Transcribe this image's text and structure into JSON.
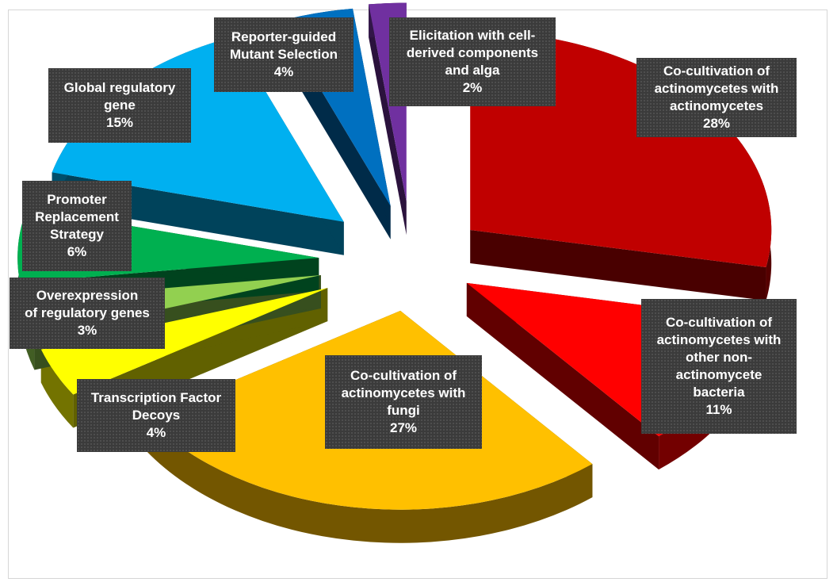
{
  "chart_data": {
    "type": "pie",
    "title": "",
    "slices": [
      {
        "label_lines": [
          "Co-cultivation of",
          "actinomycetes with",
          "actinomycetes"
        ],
        "value": 28,
        "pct": "28%",
        "color": "#c00000"
      },
      {
        "label_lines": [
          "Co-cultivation of",
          "actinomycetes with",
          "other non-",
          "actinomycete",
          "bacteria"
        ],
        "value": 11,
        "pct": "11%",
        "color": "#ff0000"
      },
      {
        "label_lines": [
          "Co-cultivation of",
          "actinomycetes with",
          "fungi"
        ],
        "value": 27,
        "pct": "27%",
        "color": "#ffc000"
      },
      {
        "label_lines": [
          "Transcription Factor",
          "Decoys"
        ],
        "value": 4,
        "pct": "4%",
        "color": "#ffff00"
      },
      {
        "label_lines": [
          "Overexpression",
          "of regulatory genes"
        ],
        "value": 3,
        "pct": "3%",
        "color": "#92d050"
      },
      {
        "label_lines": [
          "Promoter",
          "Replacement",
          "Strategy"
        ],
        "value": 6,
        "pct": "6%",
        "color": "#00b050"
      },
      {
        "label_lines": [
          "Global regulatory",
          "gene"
        ],
        "value": 15,
        "pct": "15%",
        "color": "#00b0f0"
      },
      {
        "label_lines": [
          "Reporter-guided",
          "Mutant Selection"
        ],
        "value": 4,
        "pct": "4%",
        "color": "#0070c0"
      },
      {
        "label_lines": [
          "Elicitation with cell-",
          "derived components",
          "and alga"
        ],
        "value": 2,
        "pct": "2%",
        "color": "#7030a0"
      }
    ],
    "legend": "none",
    "style": "exploded-3d"
  }
}
